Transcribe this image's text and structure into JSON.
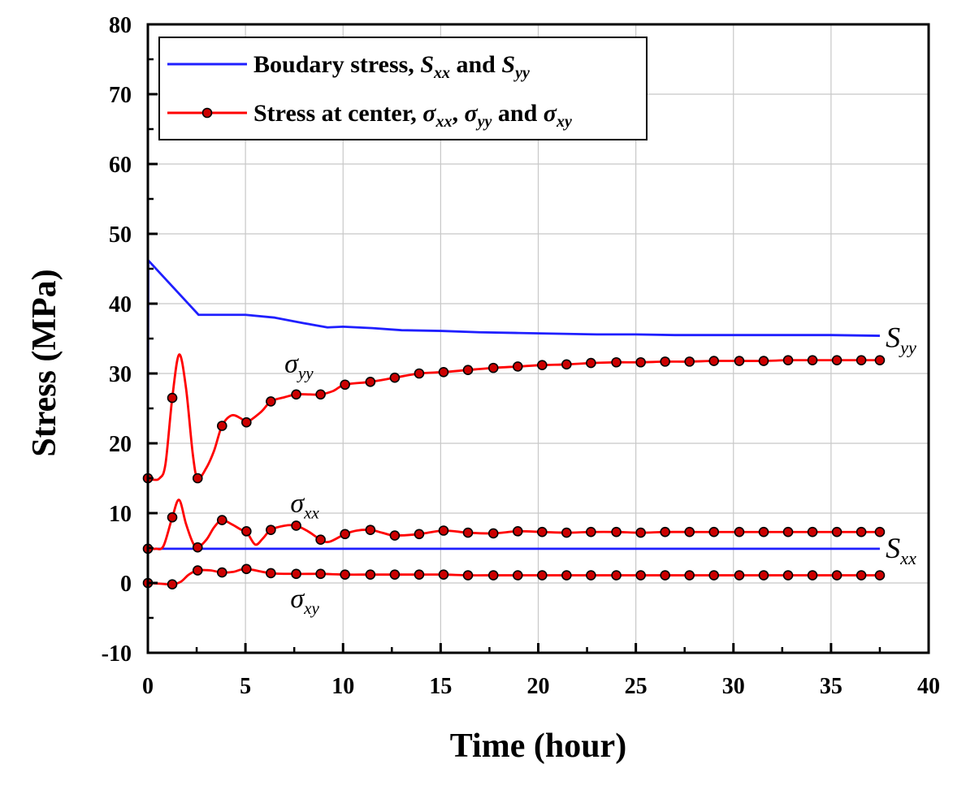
{
  "chart_data": {
    "type": "line",
    "xlabel": "Time (hour)",
    "ylabel": "Stress (MPa)",
    "xlim": [
      0,
      40
    ],
    "ylim": [
      -10,
      80
    ],
    "xticks": [
      "0",
      "5",
      "10",
      "15",
      "20",
      "25",
      "30",
      "35",
      "40"
    ],
    "yticks": [
      "-10",
      "0",
      "10",
      "20",
      "30",
      "40",
      "50",
      "60",
      "70",
      "80"
    ],
    "grid": true,
    "legend_position": "top-left",
    "legend": [
      {
        "text": "Boudary stress, ",
        "sym1": "S",
        "sub1": "xx",
        "mid": " and ",
        "sym2": "S",
        "sub2": "yy",
        "color": "#1f1fff",
        "markers": false
      },
      {
        "text": "Stress at center, ",
        "sym1": "σ",
        "sub1": "xx",
        "sep1": ", ",
        "sym2": "σ",
        "sub2": "yy",
        "mid": " and ",
        "sym3": "σ",
        "sub3": "xy",
        "color": "#ff0000",
        "markers": true
      }
    ],
    "annotations": [
      {
        "sym": "σ",
        "sub": "yy",
        "x": 7.0,
        "y": 30.2
      },
      {
        "sym": "σ",
        "sub": "xx",
        "x": 7.3,
        "y": 10.2
      },
      {
        "sym": "σ",
        "sub": "xy",
        "x": 7.3,
        "y": -3.5
      },
      {
        "sym": "S",
        "sub": "yy",
        "x": 37.8,
        "y": 33.8
      },
      {
        "sym": "S",
        "sub": "xx",
        "x": 37.8,
        "y": 3.6
      }
    ],
    "series": [
      {
        "key": "Syy",
        "style": "blue_line",
        "x": [
          0,
          0.02,
          2.6,
          5.0,
          6.5,
          8.0,
          9.2,
          10.0,
          11.5,
          13.0,
          15.0,
          17.0,
          19.0,
          21.0,
          23.0,
          25.0,
          27.0,
          29.0,
          31.0,
          33.0,
          35.0,
          37.5
        ],
        "y": [
          15.0,
          46.2,
          38.4,
          38.4,
          38.0,
          37.2,
          36.6,
          36.7,
          36.5,
          36.2,
          36.1,
          35.9,
          35.8,
          35.7,
          35.6,
          35.6,
          35.5,
          35.5,
          35.5,
          35.5,
          35.5,
          35.4
        ]
      },
      {
        "key": "Sxx",
        "style": "blue_line",
        "x": [
          0,
          37.5
        ],
        "y": [
          4.9,
          4.9
        ]
      },
      {
        "key": "sigma_yy",
        "style": "red_markers",
        "x": [
          0,
          0.25,
          0.6,
          0.9,
          1.25,
          1.6,
          1.95,
          2.3,
          2.55,
          3.0,
          3.4,
          3.8,
          4.3,
          4.8,
          5.05,
          5.8,
          6.3,
          7.0,
          7.6,
          8.3,
          8.85,
          9.5,
          10.1,
          11.4,
          12.65,
          13.9,
          15.15,
          16.4,
          17.7,
          18.95,
          20.2,
          21.45,
          22.7,
          24.0,
          25.25,
          26.5,
          27.75,
          29.0,
          30.3,
          31.55,
          32.8,
          34.05,
          35.3,
          36.55,
          37.5
        ],
        "y": [
          15.0,
          14.8,
          15.0,
          17.0,
          26.5,
          32.7,
          28.0,
          18.5,
          15.0,
          16.5,
          19.0,
          22.5,
          24.0,
          23.5,
          23.0,
          24.5,
          26.0,
          26.6,
          27.0,
          27.0,
          27.0,
          27.5,
          28.4,
          28.8,
          29.4,
          30.0,
          30.2,
          30.5,
          30.8,
          31.0,
          31.2,
          31.3,
          31.5,
          31.6,
          31.6,
          31.7,
          31.7,
          31.8,
          31.8,
          31.8,
          31.9,
          31.9,
          31.9,
          31.9,
          31.9
        ],
        "marker_x": [
          0,
          1.25,
          2.55,
          3.8,
          5.05,
          6.3,
          7.6,
          8.85,
          10.1,
          11.4,
          12.65,
          13.9,
          15.15,
          16.4,
          17.7,
          18.95,
          20.2,
          21.45,
          22.7,
          24.0,
          25.25,
          26.5,
          27.75,
          29.0,
          30.3,
          31.55,
          32.8,
          34.05,
          35.3,
          36.55,
          37.5
        ],
        "marker_y": [
          15.0,
          26.5,
          15.0,
          22.5,
          23.0,
          26.0,
          27.0,
          27.0,
          28.4,
          28.8,
          29.4,
          30.0,
          30.2,
          30.5,
          30.8,
          31.0,
          31.2,
          31.3,
          31.5,
          31.6,
          31.6,
          31.7,
          31.7,
          31.8,
          31.8,
          31.8,
          31.9,
          31.9,
          31.9,
          31.9,
          31.9
        ]
      },
      {
        "key": "sigma_xx",
        "style": "red_markers",
        "x": [
          0,
          0.4,
          0.8,
          1.25,
          1.6,
          1.95,
          2.3,
          2.55,
          3.0,
          3.4,
          3.8,
          4.3,
          4.8,
          5.05,
          5.5,
          5.9,
          6.3,
          7.0,
          7.6,
          8.2,
          8.85,
          9.3,
          10.1,
          10.7,
          11.4,
          12.0,
          12.65,
          13.9,
          15.15,
          16.4,
          17.7,
          18.95,
          20.2,
          21.45,
          22.7,
          24.0,
          25.25,
          26.5,
          27.75,
          29.0,
          30.3,
          31.55,
          32.8,
          34.05,
          35.3,
          36.55,
          37.5
        ],
        "y": [
          4.9,
          4.9,
          5.3,
          9.4,
          11.9,
          8.5,
          5.8,
          5.1,
          6.2,
          8.0,
          9.0,
          8.4,
          7.6,
          7.4,
          5.5,
          6.4,
          7.6,
          8.2,
          8.2,
          7.4,
          6.2,
          5.9,
          7.0,
          7.5,
          7.6,
          7.2,
          6.8,
          7.0,
          7.5,
          7.2,
          7.1,
          7.4,
          7.3,
          7.2,
          7.3,
          7.3,
          7.2,
          7.3,
          7.3,
          7.3,
          7.3,
          7.3,
          7.3,
          7.3,
          7.3,
          7.3,
          7.3
        ],
        "marker_x": [
          0,
          1.25,
          2.55,
          3.8,
          5.05,
          6.3,
          7.6,
          8.85,
          10.1,
          11.4,
          12.65,
          13.9,
          15.15,
          16.4,
          17.7,
          18.95,
          20.2,
          21.45,
          22.7,
          24.0,
          25.25,
          26.5,
          27.75,
          29.0,
          30.3,
          31.55,
          32.8,
          34.05,
          35.3,
          36.55,
          37.5
        ],
        "marker_y": [
          4.9,
          9.4,
          5.1,
          9.0,
          7.4,
          7.6,
          8.2,
          6.2,
          7.0,
          7.6,
          6.8,
          7.0,
          7.5,
          7.2,
          7.1,
          7.4,
          7.3,
          7.2,
          7.3,
          7.3,
          7.2,
          7.3,
          7.3,
          7.3,
          7.3,
          7.3,
          7.3,
          7.3,
          7.3,
          7.3,
          7.3
        ]
      },
      {
        "key": "sigma_xy",
        "style": "red_markers",
        "x": [
          0,
          0.6,
          1.25,
          1.7,
          2.1,
          2.55,
          3.2,
          3.8,
          4.4,
          5.05,
          6.3,
          7.6,
          8.85,
          10.1,
          11.4,
          12.65,
          13.9,
          15.15,
          16.4,
          17.7,
          18.95,
          20.2,
          21.45,
          22.7,
          24.0,
          25.25,
          26.5,
          27.75,
          29.0,
          30.3,
          31.55,
          32.8,
          34.05,
          35.3,
          36.55,
          37.5
        ],
        "y": [
          0.0,
          -0.1,
          -0.2,
          0.2,
          1.2,
          1.8,
          1.8,
          1.5,
          1.6,
          2.0,
          1.4,
          1.3,
          1.3,
          1.2,
          1.2,
          1.2,
          1.2,
          1.2,
          1.1,
          1.1,
          1.1,
          1.1,
          1.1,
          1.1,
          1.1,
          1.1,
          1.1,
          1.1,
          1.1,
          1.1,
          1.1,
          1.1,
          1.1,
          1.1,
          1.1,
          1.1
        ],
        "marker_x": [
          0,
          1.25,
          2.55,
          3.8,
          5.05,
          6.3,
          7.6,
          8.85,
          10.1,
          11.4,
          12.65,
          13.9,
          15.15,
          16.4,
          17.7,
          18.95,
          20.2,
          21.45,
          22.7,
          24.0,
          25.25,
          26.5,
          27.75,
          29.0,
          30.3,
          31.55,
          32.8,
          34.05,
          35.3,
          36.55,
          37.5
        ],
        "marker_y": [
          0.0,
          -0.2,
          1.8,
          1.5,
          2.0,
          1.4,
          1.3,
          1.3,
          1.2,
          1.2,
          1.2,
          1.2,
          1.2,
          1.1,
          1.1,
          1.1,
          1.1,
          1.1,
          1.1,
          1.1,
          1.1,
          1.1,
          1.1,
          1.1,
          1.1,
          1.1,
          1.1,
          1.1,
          1.1,
          1.1,
          1.1
        ]
      }
    ]
  }
}
